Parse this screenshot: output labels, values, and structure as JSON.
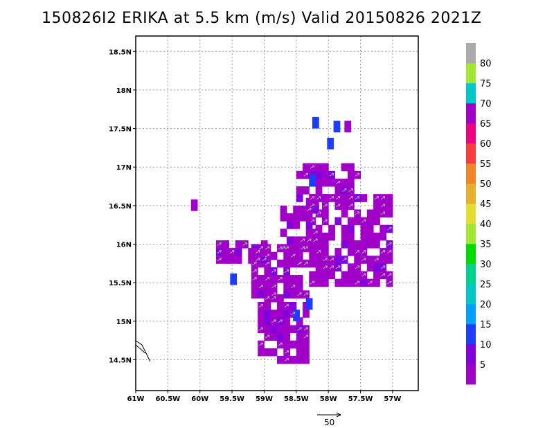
{
  "chart_data": {
    "type": "heatmap",
    "title": "150826I2 ERIKA at 5.5 km (m/s) Valid 20150826  2021Z",
    "xlabel": "",
    "ylabel": "",
    "xlim": [
      -61.0,
      -56.6
    ],
    "ylim": [
      14.1,
      18.7
    ],
    "x_ticks": [
      -61,
      -60.5,
      -60,
      -59.5,
      -59,
      -58.5,
      -58,
      -57.5,
      -57
    ],
    "x_tick_labels": [
      "61W",
      "60.5W",
      "60W",
      "59.5W",
      "59W",
      "58.5W",
      "58W",
      "57.5W",
      "57W"
    ],
    "y_ticks": [
      14.5,
      15,
      15.5,
      16,
      16.5,
      17,
      17.5,
      18,
      18.5
    ],
    "y_tick_labels": [
      "14.5N",
      "15N",
      "15.5N",
      "16N",
      "16.5N",
      "17N",
      "17.5N",
      "18N",
      "18.5N"
    ],
    "grid": true,
    "colorbar": {
      "levels": [
        5,
        10,
        15,
        20,
        25,
        30,
        35,
        40,
        45,
        50,
        55,
        60,
        65,
        70,
        75,
        80
      ],
      "labels": [
        "5",
        "10",
        "15",
        "20",
        "25",
        "30",
        "35",
        "40",
        "45",
        "50",
        "55",
        "60",
        "65",
        "70",
        "75",
        "80"
      ],
      "colors": [
        "#a000c8",
        "#8200dc",
        "#1e3cff",
        "#00a0ff",
        "#00c8c8",
        "#00d28c",
        "#00dc00",
        "#a0e632",
        "#e6dc32",
        "#e6af2d",
        "#f08228",
        "#fa3c3c",
        "#f00082",
        "#a000c8",
        "#00c8c8",
        "#a0e632",
        "#aaaaaa"
      ]
    },
    "reference_vector": {
      "value": "50"
    },
    "wind_cells": [
      {
        "x": -60.14,
        "y": 16.48,
        "v": 3
      },
      {
        "x": -59.53,
        "y": 15.52,
        "v": 10
      },
      {
        "x": -58.25,
        "y": 17.55,
        "v": 10
      },
      {
        "x": -57.92,
        "y": 17.5,
        "v": 10
      },
      {
        "x": -58.02,
        "y": 17.28,
        "v": 10
      },
      {
        "x": -58.3,
        "y": 16.8,
        "v": 10
      },
      {
        "x": -58.35,
        "y": 15.2,
        "v": 10
      },
      {
        "x": -58.55,
        "y": 15.05,
        "v": 10
      },
      {
        "x": -57.75,
        "y": 17.5,
        "v": 3
      },
      {
        "x": -57.7,
        "y": 16.95,
        "v": 3
      },
      {
        "x": -58.4,
        "y": 16.9,
        "v": 3
      }
    ],
    "regions": [
      {
        "name": "main-east",
        "x0": -58.3,
        "x1": -57.0,
        "y0": 15.45,
        "y1": 16.65,
        "v": 3
      },
      {
        "name": "main-west",
        "x0": -59.2,
        "x1": -58.2,
        "y0": 15.3,
        "y1": 15.9,
        "v": 3
      },
      {
        "name": "west-arm",
        "x0": -59.75,
        "x1": -59.0,
        "y0": 15.75,
        "y1": 16.0,
        "v": 3
      },
      {
        "name": "north-lobe",
        "x0": -58.75,
        "x1": -58.2,
        "y0": 15.9,
        "y1": 16.6,
        "v": 3
      },
      {
        "name": "south-lobe",
        "x0": -59.1,
        "x1": -58.3,
        "y0": 14.45,
        "y1": 15.3,
        "v": 3
      },
      {
        "name": "north-tail",
        "x0": -58.5,
        "x1": -57.5,
        "y0": 16.55,
        "y1": 17.0,
        "v": 3
      }
    ]
  }
}
